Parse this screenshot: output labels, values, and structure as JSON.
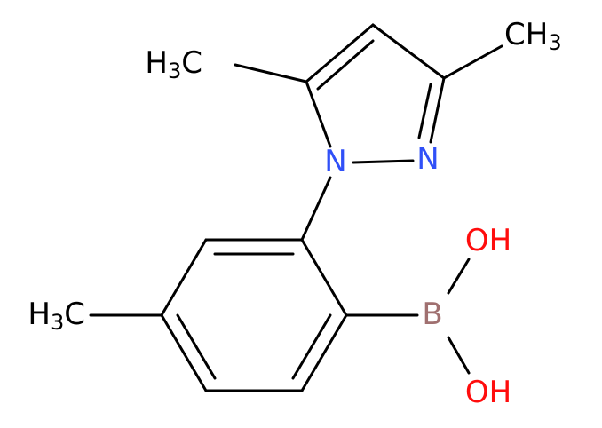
{
  "atoms": [
    {
      "parts": [
        "H",
        "3",
        "C"
      ]
    },
    {
      "parts": [
        "CH",
        "3"
      ]
    },
    {
      "parts": [
        "N"
      ]
    },
    {
      "parts": [
        "N"
      ]
    },
    {
      "parts": [
        "H",
        "3",
        "C"
      ]
    },
    {
      "parts": [
        "B"
      ]
    },
    {
      "parts": [
        "OH"
      ]
    },
    {
      "parts": [
        "OH"
      ]
    }
  ]
}
